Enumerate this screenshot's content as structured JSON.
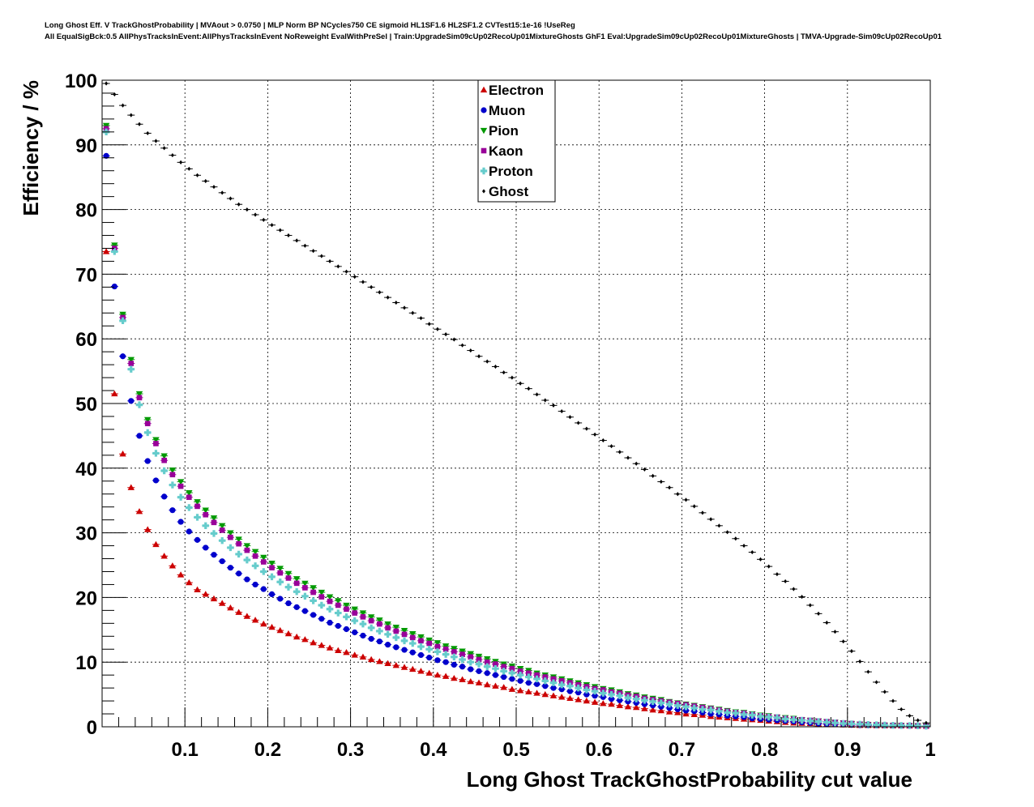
{
  "header": {
    "title_line1": "Long Ghost Eff. V TrackGhostProbability | MVAout > 0.0750 | MLP Norm BP NCycles750 CE sigmoid HL1SF1.6 HL2SF1.2 CVTest15:1e-16 !UseReg",
    "title_line2": "All EqualSigBck:0.5 AllPhysTracksInEvent:AllPhysTracksInEvent NoReweight EvalWithPreSel | Train:UpgradeSim09cUp02RecoUp01MixtureGhosts GhF1 Eval:UpgradeSim09cUp02RecoUp01MixtureGhosts | TMVA-Upgrade-Sim09cUp02RecoUp01"
  },
  "chart_data": {
    "type": "scatter",
    "xlabel": "Long Ghost TrackGhostProbability cut value",
    "ylabel": "Efficiency / %",
    "xlim": [
      0,
      1
    ],
    "ylim": [
      0,
      100
    ],
    "x_ticks": [
      0.1,
      0.2,
      0.3,
      0.4,
      0.5,
      0.6,
      0.7,
      0.8,
      0.9,
      1
    ],
    "x_tick_labels": [
      "0.1",
      "0.2",
      "0.3",
      "0.4",
      "0.5",
      "0.6",
      "0.7",
      "0.8",
      "0.9",
      "1"
    ],
    "y_ticks": [
      0,
      10,
      20,
      30,
      40,
      50,
      60,
      70,
      80,
      90,
      100
    ],
    "y_tick_labels": [
      "0",
      "10",
      "20",
      "30",
      "40",
      "50",
      "60",
      "70",
      "80",
      "90",
      "100"
    ],
    "grid": true,
    "legend_position": "top-center",
    "x_points": [
      0.005,
      0.015,
      0.025,
      0.035,
      0.045,
      0.055,
      0.065,
      0.075,
      0.085,
      0.095,
      0.105,
      0.115,
      0.125,
      0.135,
      0.145,
      0.155,
      0.165,
      0.175,
      0.185,
      0.195,
      0.205,
      0.215,
      0.225,
      0.235,
      0.245,
      0.255,
      0.265,
      0.275,
      0.285,
      0.295,
      0.305,
      0.315,
      0.325,
      0.335,
      0.345,
      0.355,
      0.365,
      0.375,
      0.385,
      0.395,
      0.405,
      0.415,
      0.425,
      0.435,
      0.445,
      0.455,
      0.465,
      0.475,
      0.485,
      0.495,
      0.505,
      0.515,
      0.525,
      0.535,
      0.545,
      0.555,
      0.565,
      0.575,
      0.585,
      0.595,
      0.605,
      0.615,
      0.625,
      0.635,
      0.645,
      0.655,
      0.665,
      0.675,
      0.685,
      0.695,
      0.705,
      0.715,
      0.725,
      0.735,
      0.745,
      0.755,
      0.765,
      0.775,
      0.785,
      0.795,
      0.805,
      0.815,
      0.825,
      0.835,
      0.845,
      0.855,
      0.865,
      0.875,
      0.885,
      0.895,
      0.905,
      0.915,
      0.925,
      0.935,
      0.945,
      0.955,
      0.965,
      0.975,
      0.985,
      0.995
    ],
    "series": [
      {
        "name": "Electron",
        "color": "#cc0000",
        "marker": "triangle-up",
        "values": [
          73.5,
          51.5,
          42.2,
          37.0,
          33.3,
          30.5,
          28.2,
          26.4,
          24.9,
          23.5,
          22.3,
          21.2,
          20.5,
          19.8,
          19.1,
          18.4,
          17.7,
          17.1,
          16.5,
          15.9,
          15.4,
          14.9,
          14.4,
          13.9,
          13.5,
          13.0,
          12.6,
          12.2,
          11.8,
          11.5,
          11.1,
          10.8,
          10.4,
          10.1,
          9.8,
          9.5,
          9.2,
          8.9,
          8.6,
          8.3,
          8.0,
          7.8,
          7.5,
          7.3,
          7.0,
          6.8,
          6.5,
          6.3,
          6.1,
          5.8,
          5.6,
          5.4,
          5.2,
          5.0,
          4.8,
          4.6,
          4.4,
          4.2,
          4.0,
          3.8,
          3.6,
          3.5,
          3.3,
          3.1,
          3.0,
          2.8,
          2.6,
          2.5,
          2.3,
          2.2,
          2.0,
          1.9,
          1.8,
          1.6,
          1.5,
          1.4,
          1.3,
          1.2,
          1.1,
          1.0,
          0.9,
          0.8,
          0.7,
          0.6,
          0.55,
          0.5,
          0.45,
          0.4,
          0.35,
          0.3,
          0.25,
          0.22,
          0.2,
          0.18,
          0.16,
          0.15,
          0.14,
          0.13,
          0.12,
          0.1
        ]
      },
      {
        "name": "Muon",
        "color": "#0000cc",
        "marker": "circle",
        "values": [
          88.3,
          68.1,
          57.3,
          50.4,
          45.0,
          41.1,
          38.1,
          35.6,
          33.5,
          31.7,
          30.2,
          28.9,
          27.7,
          26.6,
          25.6,
          24.6,
          23.7,
          22.8,
          22.0,
          21.3,
          20.5,
          19.8,
          19.1,
          18.5,
          17.9,
          17.3,
          16.7,
          16.1,
          15.6,
          15.1,
          14.6,
          14.1,
          13.6,
          13.2,
          12.7,
          12.3,
          11.9,
          11.5,
          11.1,
          10.7,
          10.3,
          10.0,
          9.6,
          9.3,
          8.9,
          8.6,
          8.3,
          8.0,
          7.7,
          7.4,
          7.1,
          6.8,
          6.6,
          6.3,
          6.0,
          5.8,
          5.5,
          5.3,
          5.0,
          4.8,
          4.6,
          4.3,
          4.1,
          3.9,
          3.7,
          3.5,
          3.3,
          3.1,
          2.9,
          2.7,
          2.5,
          2.4,
          2.2,
          2.0,
          1.9,
          1.7,
          1.6,
          1.5,
          1.3,
          1.2,
          1.1,
          1.0,
          0.9,
          0.8,
          0.7,
          0.6,
          0.5,
          0.45,
          0.4,
          0.35,
          0.3,
          0.25,
          0.22,
          0.2,
          0.18,
          0.16,
          0.15,
          0.14,
          0.13,
          0.1
        ]
      },
      {
        "name": "Pion",
        "color": "#009900",
        "marker": "triangle-down",
        "values": [
          93.0,
          74.5,
          63.8,
          56.8,
          51.5,
          47.5,
          44.4,
          41.9,
          39.7,
          37.9,
          36.2,
          34.8,
          33.5,
          32.3,
          31.1,
          30.0,
          29.0,
          28.0,
          27.1,
          26.2,
          25.3,
          24.5,
          23.7,
          22.9,
          22.2,
          21.5,
          20.8,
          20.1,
          19.5,
          18.8,
          18.2,
          17.6,
          17.0,
          16.5,
          15.9,
          15.4,
          14.9,
          14.4,
          13.9,
          13.4,
          13.0,
          12.5,
          12.1,
          11.7,
          11.3,
          10.9,
          10.5,
          10.1,
          9.7,
          9.4,
          9.0,
          8.7,
          8.3,
          8.0,
          7.7,
          7.4,
          7.1,
          6.8,
          6.5,
          6.2,
          5.9,
          5.7,
          5.4,
          5.1,
          4.9,
          4.6,
          4.4,
          4.2,
          3.9,
          3.7,
          3.5,
          3.3,
          3.1,
          2.9,
          2.7,
          2.5,
          2.3,
          2.2,
          2.0,
          1.8,
          1.7,
          1.5,
          1.4,
          1.3,
          1.1,
          1.0,
          0.9,
          0.8,
          0.7,
          0.6,
          0.5,
          0.4,
          0.35,
          0.3,
          0.25,
          0.22,
          0.2,
          0.18,
          0.15,
          0.1
        ]
      },
      {
        "name": "Kaon",
        "color": "#990099",
        "marker": "square",
        "values": [
          92.5,
          74.0,
          63.3,
          56.2,
          50.9,
          46.9,
          43.8,
          41.2,
          39.0,
          37.2,
          35.5,
          34.1,
          32.8,
          31.6,
          30.4,
          29.3,
          28.3,
          27.3,
          26.4,
          25.5,
          24.6,
          23.8,
          23.0,
          22.2,
          21.5,
          20.8,
          20.1,
          19.4,
          18.8,
          18.2,
          17.6,
          17.0,
          16.4,
          15.9,
          15.3,
          14.8,
          14.3,
          13.8,
          13.3,
          12.9,
          12.4,
          12.0,
          11.6,
          11.2,
          10.8,
          10.4,
          10.0,
          9.7,
          9.3,
          9.0,
          8.6,
          8.3,
          8.0,
          7.7,
          7.4,
          7.1,
          6.8,
          6.5,
          6.2,
          5.9,
          5.7,
          5.4,
          5.2,
          4.9,
          4.7,
          4.4,
          4.2,
          4.0,
          3.8,
          3.6,
          3.4,
          3.2,
          3.0,
          2.8,
          2.6,
          2.4,
          2.2,
          2.1,
          1.9,
          1.7,
          1.6,
          1.5,
          1.3,
          1.2,
          1.1,
          1.0,
          0.9,
          0.8,
          0.7,
          0.6,
          0.5,
          0.4,
          0.35,
          0.3,
          0.25,
          0.22,
          0.2,
          0.18,
          0.15,
          0.1
        ]
      },
      {
        "name": "Proton",
        "color": "#66cccc",
        "marker": "cross",
        "values": [
          92.0,
          73.5,
          62.8,
          55.3,
          49.8,
          45.5,
          42.3,
          39.6,
          37.4,
          35.5,
          33.9,
          32.4,
          31.1,
          29.9,
          28.8,
          27.7,
          26.7,
          25.8,
          24.9,
          24.0,
          23.2,
          22.4,
          21.6,
          20.9,
          20.2,
          19.5,
          18.8,
          18.2,
          17.6,
          17.0,
          16.4,
          15.9,
          15.3,
          14.8,
          14.3,
          13.8,
          13.3,
          12.9,
          12.4,
          12.0,
          11.6,
          11.2,
          10.8,
          10.4,
          10.0,
          9.7,
          9.3,
          9.0,
          8.6,
          8.3,
          8.0,
          7.7,
          7.4,
          7.1,
          6.8,
          6.5,
          6.3,
          6.0,
          5.7,
          5.5,
          5.2,
          5.0,
          4.8,
          4.5,
          4.3,
          4.1,
          3.9,
          3.7,
          3.5,
          3.3,
          3.1,
          2.9,
          2.7,
          2.6,
          2.4,
          2.2,
          2.1,
          1.9,
          1.8,
          1.6,
          1.5,
          1.4,
          1.2,
          1.1,
          1.0,
          0.9,
          0.8,
          0.7,
          0.6,
          0.5,
          0.45,
          0.4,
          0.35,
          0.3,
          0.25,
          0.22,
          0.2,
          0.18,
          0.15,
          0.1
        ]
      },
      {
        "name": "Ghost",
        "color": "#000000",
        "marker": "diamond",
        "values": [
          99.5,
          97.8,
          96.1,
          94.6,
          93.2,
          91.8,
          90.6,
          89.5,
          88.4,
          87.3,
          86.3,
          85.3,
          84.4,
          83.5,
          82.6,
          81.7,
          80.8,
          80.0,
          79.2,
          78.4,
          77.6,
          76.8,
          76.0,
          75.2,
          74.4,
          73.6,
          72.8,
          72.0,
          71.2,
          70.4,
          69.6,
          68.8,
          68.0,
          67.2,
          66.4,
          65.6,
          64.8,
          64.0,
          63.2,
          62.3,
          61.5,
          60.7,
          59.9,
          59.0,
          58.2,
          57.3,
          56.5,
          55.7,
          54.8,
          54.0,
          53.1,
          52.3,
          51.4,
          50.5,
          49.7,
          48.8,
          47.9,
          47.0,
          46.1,
          45.2,
          44.3,
          43.4,
          42.5,
          41.6,
          40.7,
          39.8,
          38.8,
          37.9,
          37.0,
          36.0,
          35.1,
          34.1,
          33.1,
          32.1,
          31.1,
          30.1,
          29.1,
          28.0,
          27.0,
          25.9,
          24.8,
          23.6,
          22.5,
          21.3,
          20.1,
          18.8,
          17.5,
          16.1,
          14.7,
          13.2,
          11.7,
          10.1,
          8.5,
          6.9,
          5.4,
          4.0,
          2.7,
          1.7,
          1.0,
          0.6
        ]
      }
    ]
  }
}
